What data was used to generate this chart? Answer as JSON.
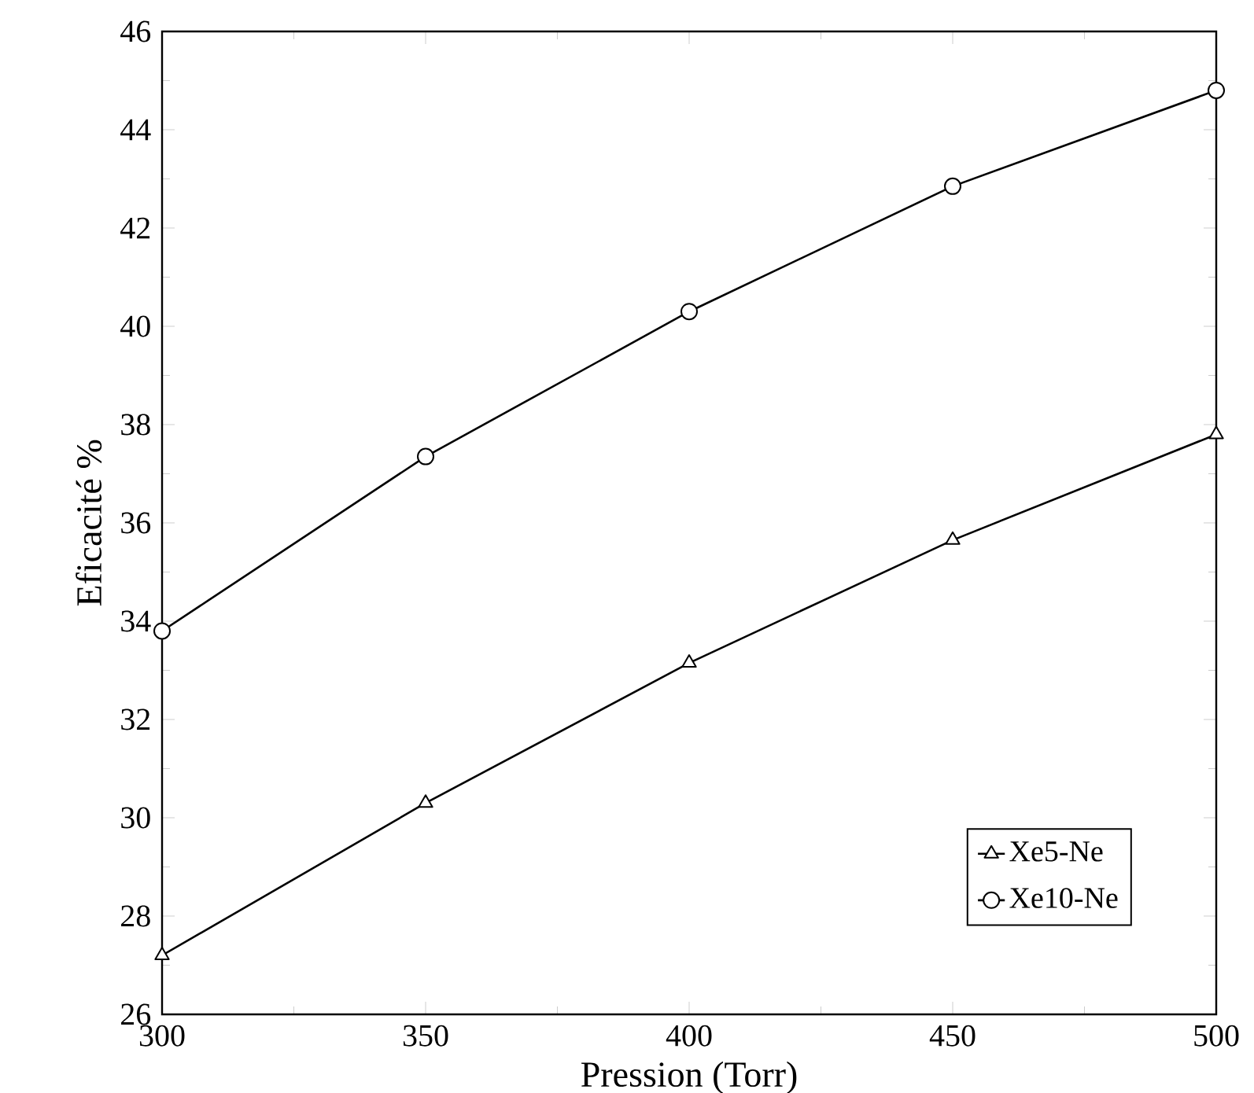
{
  "chart_data": {
    "type": "line",
    "xlabel": "Pression (Torr)",
    "ylabel": "Eficacité %",
    "x": [
      300,
      350,
      400,
      450,
      500
    ],
    "series": [
      {
        "name": "Xe5-Ne",
        "color": "#000000",
        "marker": "triangle",
        "values": [
          27.2,
          30.3,
          33.15,
          35.65,
          37.8
        ]
      },
      {
        "name": "Xe10-Ne",
        "color": "#000000",
        "marker": "circle",
        "values": [
          33.8,
          37.35,
          40.3,
          42.85,
          44.8
        ]
      }
    ],
    "xlim": [
      300,
      500
    ],
    "ylim": [
      26,
      46
    ],
    "xticks": [
      300,
      350,
      400,
      450,
      500
    ],
    "yticks": [
      26,
      28,
      30,
      32,
      34,
      36,
      38,
      40,
      42,
      44,
      46
    ],
    "legend": "bottom right",
    "grid": false,
    "line_style": "solid"
  }
}
